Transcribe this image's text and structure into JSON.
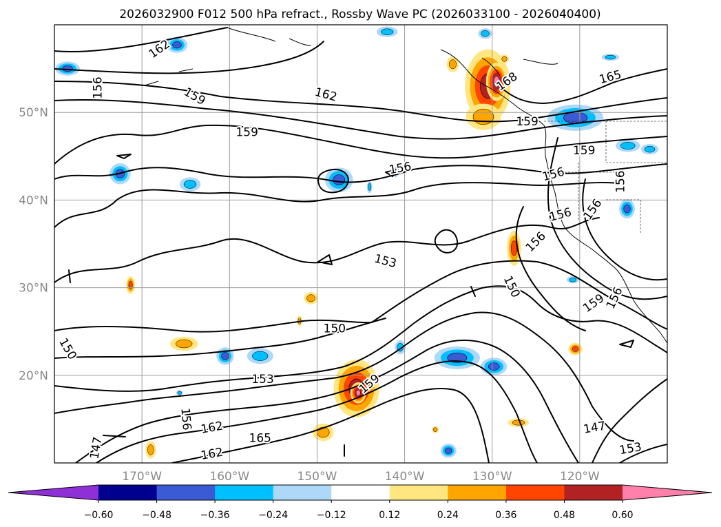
{
  "chart_data": {
    "type": "contour_map",
    "title": "2026032900 F012 500 hPa refract., Rossby Wave PC (2026033100 - 2026040400)",
    "map": {
      "lon_range": [
        -180,
        -110
      ],
      "lat_range": [
        10,
        60
      ],
      "lon_ticks": [
        {
          "value": -170,
          "label": "170°W"
        },
        {
          "value": -160,
          "label": "160°W"
        },
        {
          "value": -150,
          "label": "150°W"
        },
        {
          "value": -140,
          "label": "140°W"
        },
        {
          "value": -130,
          "label": "130°W"
        },
        {
          "value": -120,
          "label": "120°W"
        }
      ],
      "lat_ticks": [
        {
          "value": 20,
          "label": "20°N"
        },
        {
          "value": 30,
          "label": "30°N"
        },
        {
          "value": 40,
          "label": "40°N"
        },
        {
          "value": 50,
          "label": "50°N"
        }
      ],
      "grid": true
    },
    "contour_labels": [
      {
        "text": "162",
        "lon": -168,
        "lat": 57.2,
        "rot": -35
      },
      {
        "text": "156",
        "lon": -175,
        "lat": 52.8,
        "rot": -90
      },
      {
        "text": "159",
        "lon": -164,
        "lat": 51.8,
        "rot": 30
      },
      {
        "text": "162",
        "lon": -149,
        "lat": 52.0,
        "rot": 15
      },
      {
        "text": "168",
        "lon": -128.3,
        "lat": 53.5,
        "rot": -35
      },
      {
        "text": "165",
        "lon": -116.5,
        "lat": 54.0,
        "rot": -15
      },
      {
        "text": "159",
        "lon": -126,
        "lat": 48.9,
        "rot": 0
      },
      {
        "text": "159",
        "lon": -158,
        "lat": 47.7,
        "rot": 0
      },
      {
        "text": "159",
        "lon": -119.5,
        "lat": 45.6,
        "rot": 0
      },
      {
        "text": "156",
        "lon": -140.5,
        "lat": 43.6,
        "rot": -10
      },
      {
        "text": "156",
        "lon": -123,
        "lat": 42.9,
        "rot": -15
      },
      {
        "text": "156",
        "lon": -115.3,
        "lat": 42.1,
        "rot": -90
      },
      {
        "text": "156",
        "lon": -122.2,
        "lat": 38.3,
        "rot": -15
      },
      {
        "text": "156",
        "lon": -118.5,
        "lat": 38.9,
        "rot": -55
      },
      {
        "text": "156",
        "lon": -125,
        "lat": 35.2,
        "rot": -45
      },
      {
        "text": "153",
        "lon": -142.2,
        "lat": 33.0,
        "rot": 15
      },
      {
        "text": "150",
        "lon": -127.8,
        "lat": 30.1,
        "rot": 65
      },
      {
        "text": "159",
        "lon": -118.4,
        "lat": 28.2,
        "rot": -35
      },
      {
        "text": "156",
        "lon": -116,
        "lat": 28.8,
        "rot": -65
      },
      {
        "text": "150",
        "lon": -148,
        "lat": 25.3,
        "rot": 0
      },
      {
        "text": "150",
        "lon": -178.5,
        "lat": 23.0,
        "rot": 60
      },
      {
        "text": "153",
        "lon": -156.2,
        "lat": 19.5,
        "rot": 0
      },
      {
        "text": "159",
        "lon": -144,
        "lat": 19.0,
        "rot": -40
      },
      {
        "text": "156",
        "lon": -165,
        "lat": 15.0,
        "rot": 85
      },
      {
        "text": "162",
        "lon": -162,
        "lat": 14.0,
        "rot": -10
      },
      {
        "text": "165",
        "lon": -156.5,
        "lat": 12.8,
        "rot": 0
      },
      {
        "text": "162",
        "lon": -162,
        "lat": 11.0,
        "rot": -10
      },
      {
        "text": "147",
        "lon": -175.2,
        "lat": 11.7,
        "rot": -80
      },
      {
        "text": "147",
        "lon": -118.3,
        "lat": 14.0,
        "rot": -10
      },
      {
        "text": "153",
        "lon": -114.2,
        "lat": 11.6,
        "rot": -10
      }
    ],
    "pc_anomaly_blobs": [
      {
        "lon": -130.5,
        "lat": 53.0,
        "rx": 2.6,
        "ry": 4.2,
        "level": 4
      },
      {
        "lon": -129.5,
        "lat": 53.5,
        "rx": 1.2,
        "ry": 2.2,
        "level": 5
      },
      {
        "lon": -131.0,
        "lat": 49.5,
        "rx": 2.0,
        "ry": 1.5,
        "level": 2
      },
      {
        "lon": -145.5,
        "lat": 18.5,
        "rx": 2.6,
        "ry": 3.3,
        "level": 4
      },
      {
        "lon": -145.3,
        "lat": 18.0,
        "rx": 0.9,
        "ry": 1.2,
        "level": 5
      },
      {
        "lon": -127.5,
        "lat": 34.5,
        "rx": 0.8,
        "ry": 2.0,
        "level": 3
      },
      {
        "lon": -150.7,
        "lat": 28.8,
        "rx": 0.8,
        "ry": 0.7,
        "level": 2
      },
      {
        "lon": -165.2,
        "lat": 23.6,
        "rx": 1.6,
        "ry": 0.8,
        "level": 2
      },
      {
        "lon": -171.3,
        "lat": 30.3,
        "rx": 0.5,
        "ry": 1.0,
        "level": 3
      },
      {
        "lon": -169.0,
        "lat": 11.5,
        "rx": 0.6,
        "ry": 1.0,
        "level": 2
      },
      {
        "lon": -149.3,
        "lat": 13.5,
        "rx": 1.2,
        "ry": 1.0,
        "level": 2
      },
      {
        "lon": -134.5,
        "lat": 55.5,
        "rx": 0.7,
        "ry": 0.9,
        "level": 2
      },
      {
        "lon": -128.6,
        "lat": 56.1,
        "rx": 0.5,
        "ry": 0.5,
        "level": 2
      },
      {
        "lon": -120.5,
        "lat": 23.0,
        "rx": 0.8,
        "ry": 0.7,
        "level": 3
      },
      {
        "lon": -127.0,
        "lat": 14.6,
        "rx": 1.2,
        "ry": 0.5,
        "level": 2
      },
      {
        "lon": -152.0,
        "lat": 26.2,
        "rx": 0.3,
        "ry": 0.6,
        "level": 2
      },
      {
        "lon": -136.5,
        "lat": 13.8,
        "rx": 0.4,
        "ry": 0.4,
        "level": 2
      },
      {
        "lon": -165.7,
        "lat": 18.0,
        "rx": 0.4,
        "ry": 0.3,
        "level": -2
      },
      {
        "lon": -147.5,
        "lat": 42.3,
        "rx": 1.6,
        "ry": 1.4,
        "level": -3
      },
      {
        "lon": -172.5,
        "lat": 43.0,
        "rx": 1.2,
        "ry": 1.2,
        "level": -3
      },
      {
        "lon": -164.5,
        "lat": 41.8,
        "rx": 1.2,
        "ry": 0.8,
        "level": -2
      },
      {
        "lon": -166.0,
        "lat": 57.7,
        "rx": 1.2,
        "ry": 0.9,
        "level": -3
      },
      {
        "lon": -178.5,
        "lat": 55.0,
        "rx": 1.4,
        "ry": 0.8,
        "level": -3
      },
      {
        "lon": -120.5,
        "lat": 49.4,
        "rx": 3.2,
        "ry": 1.5,
        "level": -3
      },
      {
        "lon": -114.5,
        "lat": 46.2,
        "rx": 1.4,
        "ry": 0.7,
        "level": -2
      },
      {
        "lon": -114.6,
        "lat": 39.0,
        "rx": 0.9,
        "ry": 1.1,
        "level": -3
      },
      {
        "lon": -134.0,
        "lat": 22.0,
        "rx": 2.6,
        "ry": 1.3,
        "level": -3
      },
      {
        "lon": -129.8,
        "lat": 21.0,
        "rx": 1.5,
        "ry": 1.0,
        "level": -3
      },
      {
        "lon": -156.5,
        "lat": 22.2,
        "rx": 1.5,
        "ry": 0.9,
        "level": -2
      },
      {
        "lon": -160.5,
        "lat": 22.2,
        "rx": 1.0,
        "ry": 1.0,
        "level": -3
      },
      {
        "lon": -140.5,
        "lat": 23.2,
        "rx": 0.6,
        "ry": 0.8,
        "level": -2
      },
      {
        "lon": -135.0,
        "lat": 11.4,
        "rx": 0.9,
        "ry": 0.8,
        "level": -3
      },
      {
        "lon": -142.0,
        "lat": 59.2,
        "rx": 1.2,
        "ry": 0.6,
        "level": -2
      },
      {
        "lon": -130.8,
        "lat": 59.0,
        "rx": 0.8,
        "ry": 0.6,
        "level": -2
      },
      {
        "lon": -116.5,
        "lat": 56.3,
        "rx": 1.0,
        "ry": 0.4,
        "level": -2
      },
      {
        "lon": -112.0,
        "lat": 45.8,
        "rx": 1.0,
        "ry": 0.6,
        "level": -2
      },
      {
        "lon": -120.8,
        "lat": 30.9,
        "rx": 0.7,
        "ry": 0.4,
        "level": -2
      },
      {
        "lon": -141.0,
        "lat": 43.2,
        "rx": 0.3,
        "ry": 0.6,
        "level": -2
      },
      {
        "lon": -144.0,
        "lat": 41.5,
        "rx": 0.3,
        "ry": 0.7,
        "level": -2
      }
    ],
    "colorbar": {
      "orientation": "horizontal",
      "tick_labels": [
        "−0.60",
        "−0.48",
        "−0.36",
        "−0.24",
        "−0.12",
        "0.12",
        "0.24",
        "0.36",
        "0.48",
        "0.60"
      ],
      "ticks": [
        -0.6,
        -0.48,
        -0.36,
        -0.24,
        -0.12,
        0.12,
        0.24,
        0.36,
        0.48,
        0.6
      ],
      "colors": [
        "#8f2fd6",
        "#00008f",
        "#3a5bd4",
        "#00bfff",
        "#add8f7",
        "#ffffff",
        "#ffe680",
        "#ffa500",
        "#ff4500",
        "#b22222",
        "#ff80aa"
      ],
      "extend": "both"
    }
  }
}
